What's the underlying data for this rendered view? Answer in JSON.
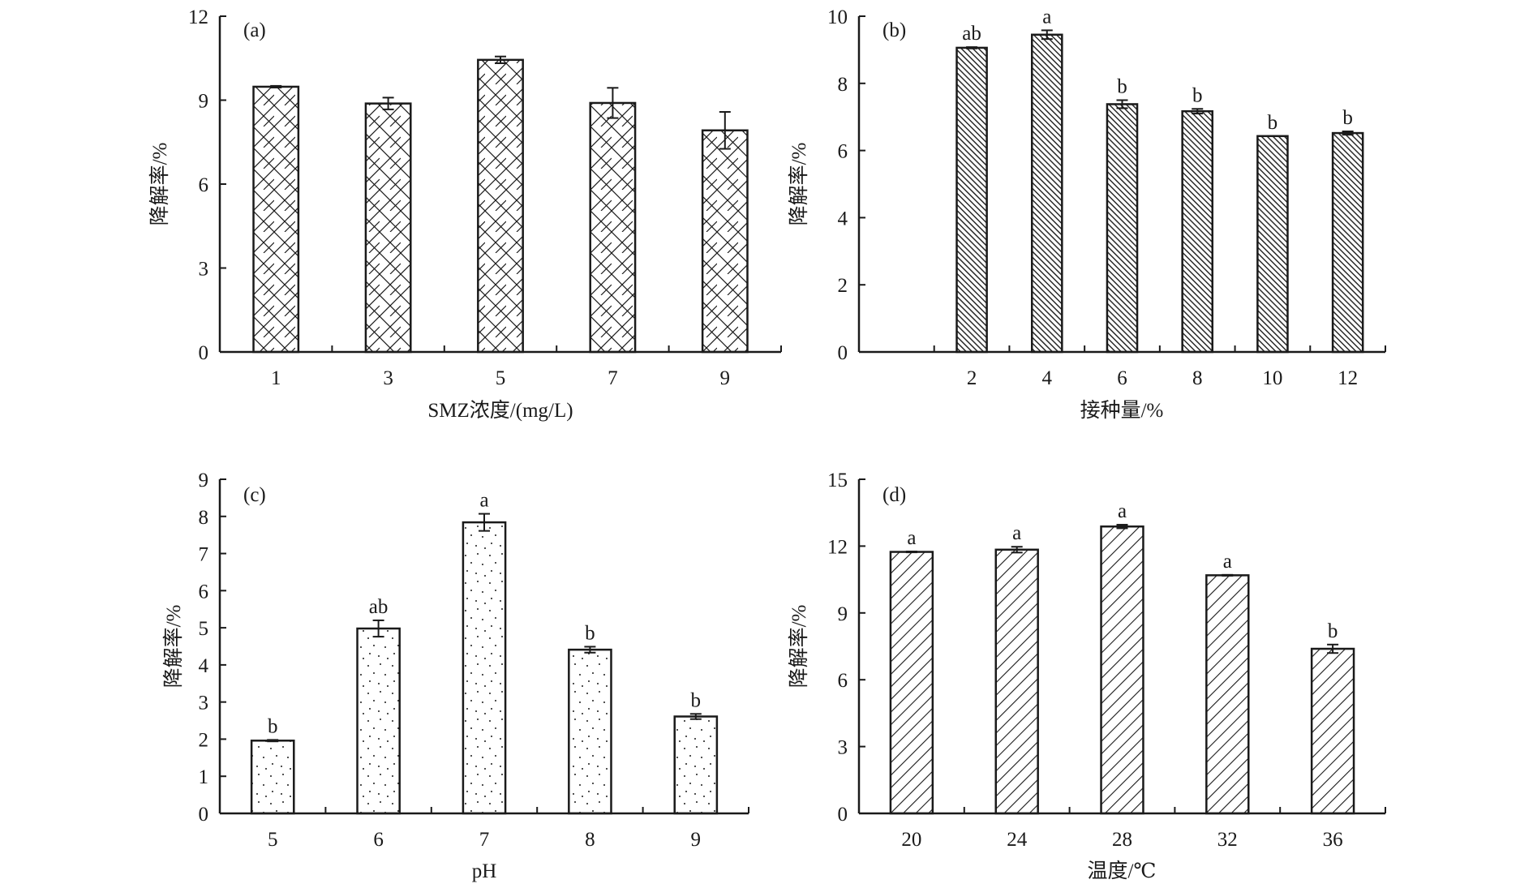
{
  "chart_data": [
    {
      "id": "a",
      "type": "bar",
      "panel_label": "(a)",
      "title": "",
      "xlabel": "SMZ浓度/(mg/L)",
      "ylabel": "降解率/%",
      "categories": [
        "1",
        "3",
        "5",
        "7",
        "9"
      ],
      "values": [
        9.48,
        8.88,
        10.44,
        8.9,
        7.92
      ],
      "errors": [
        0.03,
        0.21,
        0.12,
        0.54,
        0.66
      ],
      "significance": [
        "",
        "",
        "",
        "",
        ""
      ],
      "ylim": [
        0,
        12
      ],
      "yticks": [
        0,
        3,
        6,
        9,
        12
      ],
      "pattern": "crosshatch",
      "leading_empty_slot": false,
      "grid": false,
      "legend": "none"
    },
    {
      "id": "b",
      "type": "bar",
      "panel_label": "(b)",
      "title": "",
      "xlabel": "接种量/%",
      "ylabel": "降解率/%",
      "categories": [
        "2",
        "4",
        "6",
        "8",
        "10",
        "12"
      ],
      "values": [
        9.06,
        9.45,
        7.38,
        7.17,
        6.43,
        6.52
      ],
      "errors": [
        0.02,
        0.13,
        0.12,
        0.07,
        0.0,
        0.05
      ],
      "significance": [
        "ab",
        "a",
        "b",
        "b",
        "b",
        "b"
      ],
      "ylim": [
        0,
        10
      ],
      "yticks": [
        0,
        2,
        4,
        6,
        8,
        10
      ],
      "pattern": "dense-diagonal",
      "leading_empty_slot": true,
      "grid": false,
      "legend": "none"
    },
    {
      "id": "c",
      "type": "bar",
      "panel_label": "(c)",
      "title": "",
      "xlabel": "pH",
      "ylabel": "降解率/%",
      "categories": [
        "5",
        "6",
        "7",
        "8",
        "9"
      ],
      "values": [
        1.96,
        4.98,
        7.84,
        4.41,
        2.61
      ],
      "errors": [
        0.02,
        0.22,
        0.23,
        0.08,
        0.07
      ],
      "significance": [
        "b",
        "ab",
        "a",
        "b",
        "b"
      ],
      "ylim": [
        0,
        9
      ],
      "yticks": [
        0,
        1,
        2,
        3,
        4,
        5,
        6,
        7,
        8,
        9
      ],
      "pattern": "dots",
      "leading_empty_slot": false,
      "grid": false,
      "legend": "none"
    },
    {
      "id": "d",
      "type": "bar",
      "panel_label": "(d)",
      "title": "",
      "xlabel": "温度/℃",
      "ylabel": "降解率/%",
      "categories": [
        "20",
        "24",
        "28",
        "32",
        "36"
      ],
      "values": [
        11.74,
        11.84,
        12.88,
        10.69,
        7.39
      ],
      "errors": [
        0.02,
        0.13,
        0.08,
        0.02,
        0.19
      ],
      "significance": [
        "a",
        "a",
        "a",
        "a",
        "b"
      ],
      "ylim": [
        0,
        15
      ],
      "yticks": [
        0,
        3,
        6,
        9,
        12,
        15
      ],
      "pattern": "back-diagonal",
      "leading_empty_slot": false,
      "grid": false,
      "legend": "none"
    }
  ],
  "colors": {
    "ink": "#1a1a1a",
    "bar_fill": "#ffffff",
    "background": "#ffffff"
  }
}
